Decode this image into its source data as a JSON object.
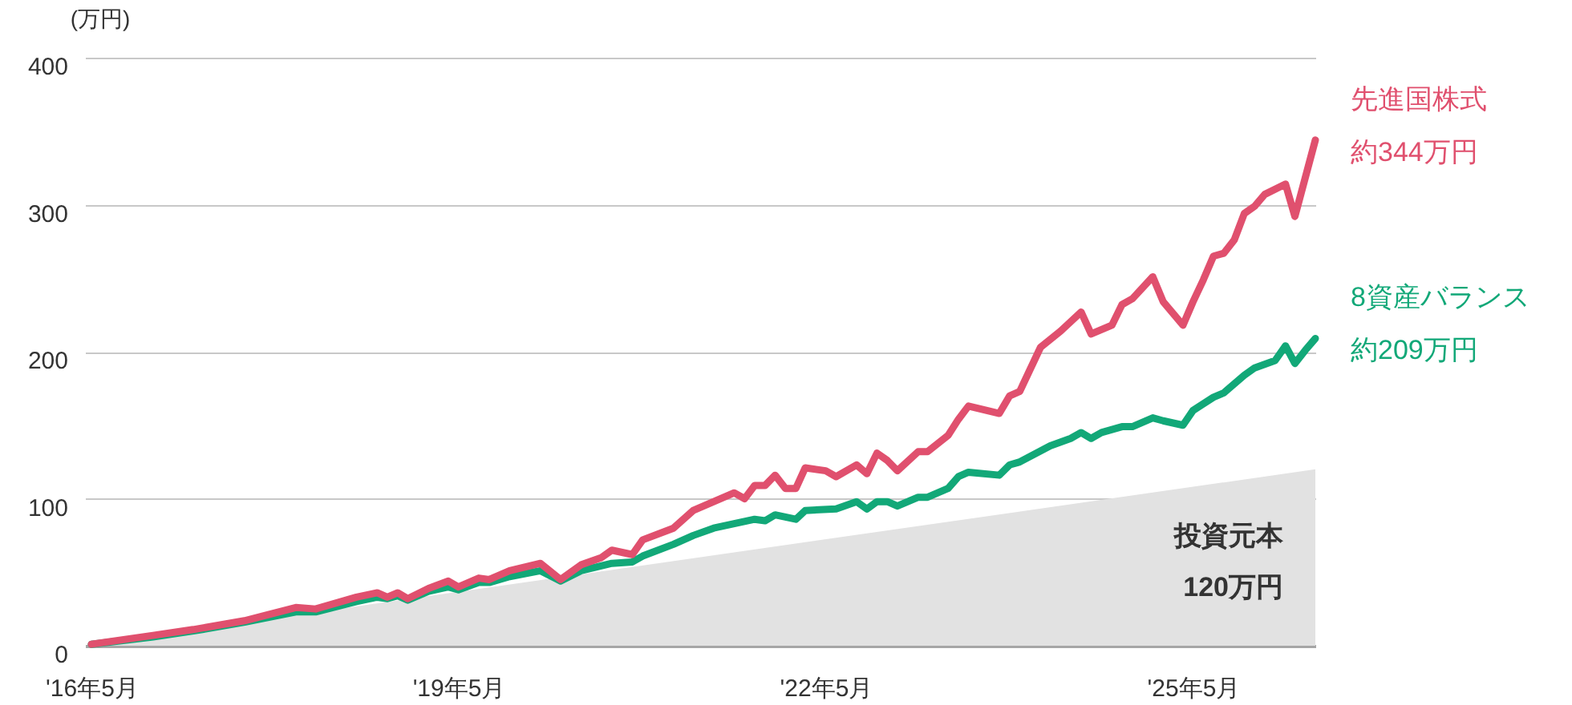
{
  "chart_data": {
    "type": "line",
    "ylabel": "(万円)",
    "ylim": [
      0,
      400
    ],
    "yticks": [
      0,
      100,
      200,
      300,
      400
    ],
    "xlim": [
      "2016-04-12",
      "2026-05"
    ],
    "xticks": [
      {
        "value": "2016-05",
        "label": "'16年5月"
      },
      {
        "value": "2019-05",
        "label": "'19年5月"
      },
      {
        "value": "2022-05",
        "label": "'22年5月"
      },
      {
        "value": "2025-05",
        "label": "'25年5月"
      }
    ],
    "grid": "y",
    "legend": false,
    "marker": "none",
    "line_style": "solid",
    "annotations": [
      "120万円"
    ],
    "series": [
      {
        "name": "投資元本",
        "type": "area",
        "color": "#e2e2e2",
        "x": [
          "2016-05",
          "2026-05"
        ],
        "values": [
          1,
          120
        ]
      },
      {
        "name": "8資産バランス",
        "color": "#12a878",
        "x": [
          "2016-05",
          "2016-11",
          "2017-03",
          "2017-08",
          "2018-01",
          "2018-03",
          "2018-07",
          "2018-09",
          "2018-10",
          "2018-11",
          "2018-12",
          "2019-02",
          "2019-04",
          "2019-05",
          "2019-07",
          "2019-08",
          "2019-10",
          "2020-01",
          "2020-03",
          "2020-05",
          "2020-08",
          "2020-10",
          "2020-11",
          "2021-02",
          "2021-04",
          "2021-06",
          "2021-08",
          "2021-10",
          "2021-11",
          "2021-12",
          "2022-02",
          "2022-03",
          "2022-06",
          "2022-08",
          "2022-09",
          "2022-10",
          "2022-11",
          "2022-12",
          "2023-02",
          "2023-03",
          "2023-05",
          "2023-06",
          "2023-07",
          "2023-10",
          "2023-11",
          "2023-12",
          "2024-03",
          "2024-05",
          "2024-06",
          "2024-07",
          "2024-08",
          "2024-10",
          "2024-11",
          "2025-01",
          "2025-02",
          "2025-04",
          "2025-05",
          "2025-07",
          "2025-08",
          "2025-10",
          "2025-11",
          "2026-01",
          "2026-02",
          "2026-03",
          "2026-04",
          "2026-05"
        ],
        "values": [
          1,
          6,
          10,
          16,
          23,
          23,
          30,
          33,
          32,
          34,
          31,
          37,
          40,
          38,
          43,
          43,
          47,
          51,
          44,
          51,
          56,
          57,
          61,
          69,
          75,
          80,
          83,
          86,
          85,
          89,
          86,
          92,
          93,
          98,
          93,
          98,
          98,
          95,
          101,
          101,
          107,
          115,
          118,
          116,
          123,
          125,
          136,
          141,
          145,
          141,
          145,
          149,
          149,
          155,
          153,
          150,
          160,
          169,
          172,
          184,
          189,
          194,
          204,
          192,
          201,
          209
        ],
        "value_labels": [
          null,
          null,
          null,
          null,
          null,
          null,
          null,
          null,
          null,
          null,
          null,
          null,
          null,
          null,
          null,
          null,
          null,
          null,
          null,
          null,
          null,
          null,
          null,
          null,
          null,
          null,
          null,
          null,
          null,
          null,
          null,
          null,
          null,
          null,
          null,
          null,
          null,
          null,
          null,
          null,
          null,
          null,
          null,
          null,
          null,
          null,
          null,
          null,
          null,
          null,
          null,
          null,
          null,
          null,
          null,
          null,
          null,
          null,
          null,
          null,
          null,
          null,
          null,
          null,
          null,
          "約209万円"
        ]
      },
      {
        "name": "先進国株式",
        "color": "#e0506e",
        "x": [
          "2016-05",
          "2016-11",
          "2017-03",
          "2017-08",
          "2018-01",
          "2018-03",
          "2018-07",
          "2018-09",
          "2018-10",
          "2018-11",
          "2018-12",
          "2019-02",
          "2019-04",
          "2019-05",
          "2019-07",
          "2019-08",
          "2019-10",
          "2020-01",
          "2020-03",
          "2020-05",
          "2020-07",
          "2020-08",
          "2020-10",
          "2020-11",
          "2021-02",
          "2021-04",
          "2021-06",
          "2021-08",
          "2021-09",
          "2021-10",
          "2021-11",
          "2021-12",
          "2022-01",
          "2022-02",
          "2022-03",
          "2022-05",
          "2022-06",
          "2022-08",
          "2022-09",
          "2022-10",
          "2022-11",
          "2022-12",
          "2023-02",
          "2023-03",
          "2023-05",
          "2023-06",
          "2023-07",
          "2023-10",
          "2023-11",
          "2023-12",
          "2024-02",
          "2024-04",
          "2024-06",
          "2024-07",
          "2024-09",
          "2024-10",
          "2024-11",
          "2025-01",
          "2025-02",
          "2025-04",
          "2025-05",
          "2025-06",
          "2025-07",
          "2025-08",
          "2025-09",
          "2025-10",
          "2025-11",
          "2025-12",
          "2026-02",
          "2026-03",
          "2026-05"
        ],
        "values": [
          1,
          7,
          11,
          17,
          26,
          25,
          33,
          36,
          33,
          36,
          32,
          39,
          44,
          40,
          46,
          45,
          51,
          56,
          45,
          55,
          60,
          65,
          62,
          72,
          80,
          92,
          98,
          104,
          100,
          109,
          109,
          116,
          107,
          107,
          121,
          119,
          115,
          123,
          117,
          131,
          126,
          119,
          132,
          132,
          143,
          154,
          163,
          158,
          170,
          173,
          203,
          214,
          227,
          212,
          218,
          232,
          236,
          251,
          234,
          218,
          234,
          249,
          265,
          267,
          276,
          294,
          299,
          307,
          314,
          292,
          344
        ],
        "value_labels": [
          null,
          null,
          null,
          null,
          null,
          null,
          null,
          null,
          null,
          null,
          null,
          null,
          null,
          null,
          null,
          null,
          null,
          null,
          null,
          null,
          null,
          null,
          null,
          null,
          null,
          null,
          null,
          null,
          null,
          null,
          null,
          null,
          null,
          null,
          null,
          null,
          null,
          null,
          null,
          null,
          null,
          null,
          null,
          null,
          null,
          null,
          null,
          null,
          null,
          null,
          null,
          null,
          null,
          null,
          null,
          null,
          null,
          null,
          null,
          null,
          null,
          null,
          null,
          null,
          null,
          null,
          null,
          null,
          null,
          null,
          "約344万円"
        ]
      }
    ]
  }
}
